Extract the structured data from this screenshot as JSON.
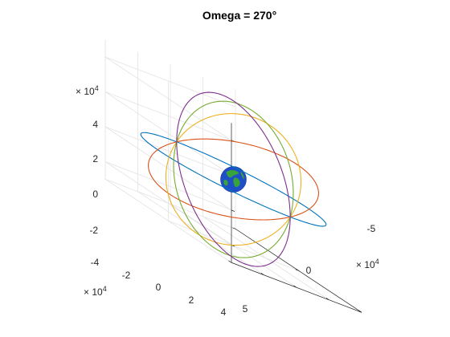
{
  "chart_data": {
    "type": "3d-line",
    "title": "Omega = 270°",
    "axes": {
      "x": {
        "ticks": [
          -4,
          -2,
          0,
          2,
          4
        ],
        "exponent": "4",
        "exponent_label": "× 10"
      },
      "y": {
        "ticks": [
          -5,
          0,
          5
        ],
        "exponent": "4",
        "exponent_label": "× 10"
      },
      "z": {
        "ticks": [
          -2,
          0,
          2,
          4
        ],
        "exponent": "4",
        "exponent_label": "× 10"
      }
    },
    "grid": true,
    "series": [
      {
        "color": "#0072BD",
        "inclination_deg": 0,
        "radius": 45000
      },
      {
        "color": "#D95319",
        "inclination_deg": 30,
        "radius": 45000
      },
      {
        "color": "#EDB120",
        "inclination_deg": 60,
        "radius": 45000
      },
      {
        "color": "#77AC30",
        "inclination_deg": 75,
        "radius": 45000
      },
      {
        "color": "#7E2F8E",
        "inclination_deg": 90,
        "radius": 45000
      }
    ],
    "body": {
      "name": "earth",
      "ocean_color": "#1f4fc7",
      "land_color": "#3aa23a"
    }
  }
}
